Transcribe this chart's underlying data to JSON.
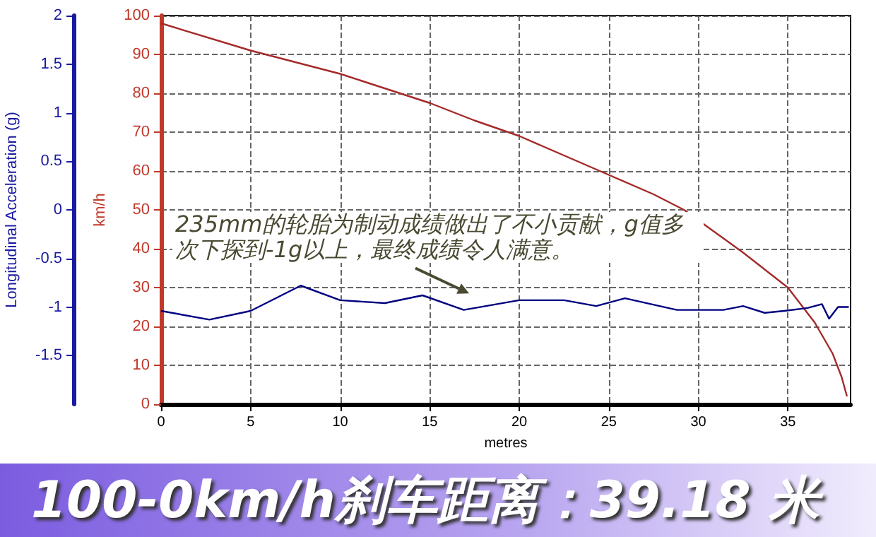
{
  "chart_data": {
    "type": "line",
    "title": "100-0km/h刹车距离：39.18 米",
    "xlabel": "metres",
    "ylabel": "km/h",
    "y2label": "Longitudinal Acceleration (g)",
    "annotations": [
      "235mm的轮胎为制动成绩做出了不小贡献，g值多次下探到-1g以上，最终成绩令人满意。"
    ],
    "xlim": [
      0,
      38.5
    ],
    "xticks": [
      0,
      5,
      10,
      15,
      20,
      25,
      30,
      35
    ],
    "ylim": [
      0,
      100
    ],
    "yticks": [
      0,
      10,
      20,
      30,
      40,
      50,
      60,
      70,
      80,
      90,
      100
    ],
    "y2lim": [
      -2,
      2
    ],
    "y2ticks": [
      -1.5,
      -1,
      -0.5,
      0,
      0.5,
      1,
      1.5,
      2
    ],
    "grid": true,
    "marker": "none",
    "line_style": "solid",
    "series": [
      {
        "color": "#a52a2a",
        "x": [
          0,
          5,
          10,
          15,
          17.5,
          20,
          25,
          27.5,
          29.2,
          32.5,
          35,
          36.5,
          37.5,
          38,
          38.3
        ],
        "values": [
          98,
          91,
          85,
          77.5,
          73,
          69,
          59,
          54,
          50,
          39,
          30,
          21,
          13,
          7,
          2
        ]
      },
      {
        "color": "#000080",
        "axis": "y2",
        "x": [
          0,
          2.7,
          5,
          7.8,
          10,
          12.5,
          14.6,
          16.9,
          20,
          22.5,
          24.3,
          25.9,
          28.8,
          31.4,
          32.5,
          33.7,
          34.8,
          36.1,
          36.9,
          37.3,
          37.8,
          38.4
        ],
        "values": [
          -1.04,
          -1.13,
          -1.04,
          -0.78,
          -0.93,
          -0.96,
          -0.88,
          -1.03,
          -0.93,
          -0.93,
          -0.99,
          -0.91,
          -1.03,
          -1.03,
          -0.99,
          -1.06,
          -1.04,
          -1.01,
          -0.97,
          -1.12,
          -1.0,
          -1.0
        ]
      }
    ]
  }
}
